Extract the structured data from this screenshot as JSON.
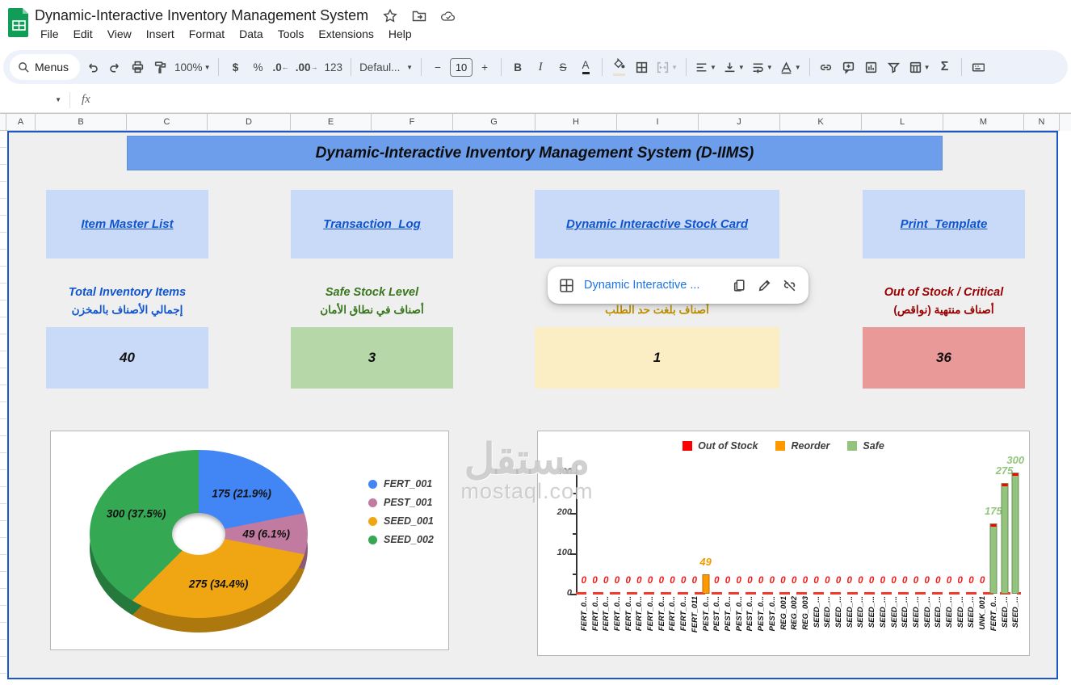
{
  "titlebar": {
    "title": "Dynamic-Interactive Inventory Management System"
  },
  "menubar": {
    "items": [
      "File",
      "Edit",
      "View",
      "Insert",
      "Format",
      "Data",
      "Tools",
      "Extensions",
      "Help"
    ]
  },
  "toolbar": {
    "menus": "Menus",
    "zoom": "100%",
    "currency": "$",
    "percent": "%",
    "decrease_decimal": ".0",
    "increase_decimal": ".00",
    "number_format": "123",
    "font": "Defaul...",
    "font_size": "10",
    "minus": "−",
    "plus": "+",
    "bold": "B",
    "italic": "I",
    "strike": "S",
    "text_color": "A",
    "sum": "Σ"
  },
  "formula_bar": {
    "fx": "fx"
  },
  "grid": {
    "columns": [
      "A",
      "B",
      "C",
      "D",
      "E",
      "F",
      "G",
      "H",
      "I",
      "J",
      "K",
      "L",
      "M",
      "N"
    ]
  },
  "dashboard": {
    "banner": "Dynamic-Interactive Inventory Management System (D-IIMS)",
    "banner_color": "#6d9eeb",
    "nav": [
      {
        "label": "Item Master List"
      },
      {
        "label": "Transaction_Log"
      },
      {
        "label": "Dynamic Interactive Stock Card"
      },
      {
        "label": "Print_Template"
      }
    ],
    "link_popup": {
      "label": "Dynamic Interactive ..."
    },
    "stats": [
      {
        "title": "Total Inventory Items",
        "title_ar": "إجمالي الأصناف بالمخزن",
        "value": "40",
        "title_color": "#1155cc",
        "box_color": "#c9daf8"
      },
      {
        "title": "Safe Stock Level",
        "title_ar": "أصناف في نطاق الأمان",
        "value": "3",
        "title_color": "#38761d",
        "box_color": "#b6d7a8"
      },
      {
        "title": "",
        "title_ar": "أصناف بلغت حد الطلب",
        "value": "1",
        "title_color": "#bf9000",
        "box_color": "#fbeec5"
      },
      {
        "title": "Out of Stock / Critical",
        "title_ar": "أصناف منتهية (نواقص)",
        "value": "36",
        "title_color": "#990000",
        "box_color": "#ea9999"
      }
    ]
  },
  "chart_data": [
    {
      "type": "pie",
      "style": "3d-donut",
      "legend_position": "right",
      "slices": [
        {
          "label": "FERT_001",
          "value": 175,
          "pct": 21.9,
          "display": "175 (21.9%)",
          "color": "#4285f4"
        },
        {
          "label": "PEST_001",
          "value": 49,
          "pct": 6.1,
          "display": "49 (6.1%)",
          "color": "#c27ba0"
        },
        {
          "label": "SEED_001",
          "value": 275,
          "pct": 34.4,
          "display": "275 (34.4%)",
          "color": "#f0a613"
        },
        {
          "label": "SEED_002",
          "value": 300,
          "pct": 37.5,
          "display": "300 (37.5%)",
          "color": "#34a853"
        }
      ]
    },
    {
      "type": "bar",
      "legend_position": "top",
      "ylim": [
        0,
        300
      ],
      "yticks": [
        0,
        100,
        200,
        300
      ],
      "minor_ticks": [
        50,
        150,
        250
      ],
      "zero_display": "0",
      "legend": [
        {
          "key": "out",
          "label": "Out of Stock",
          "color": "#ff0000",
          "label_color": "#f01818"
        },
        {
          "key": "reorder",
          "label": "Reorder",
          "color": "#ff9900",
          "label_color": "#f09b00"
        },
        {
          "key": "safe",
          "label": "Safe",
          "color": "#93c47d",
          "label_color": "#93c47d"
        }
      ],
      "bars": [
        {
          "label": "FERT_0...",
          "value": 0,
          "status": "out"
        },
        {
          "label": "FERT_0...",
          "value": 0,
          "status": "out"
        },
        {
          "label": "FERT_0...",
          "value": 0,
          "status": "out"
        },
        {
          "label": "FERT_0...",
          "value": 0,
          "status": "out"
        },
        {
          "label": "FERT_0...",
          "value": 0,
          "status": "out"
        },
        {
          "label": "FERT_0...",
          "value": 0,
          "status": "out"
        },
        {
          "label": "FERT_0...",
          "value": 0,
          "status": "out"
        },
        {
          "label": "FERT_0...",
          "value": 0,
          "status": "out"
        },
        {
          "label": "FERT_0...",
          "value": 0,
          "status": "out"
        },
        {
          "label": "FERT_0...",
          "value": 0,
          "status": "out"
        },
        {
          "label": "FERT_011",
          "value": 0,
          "status": "out"
        },
        {
          "label": "PEST_0...",
          "value": 49,
          "status": "reorder"
        },
        {
          "label": "PEST_0...",
          "value": 0,
          "status": "out"
        },
        {
          "label": "PEST_0...",
          "value": 0,
          "status": "out"
        },
        {
          "label": "PEST_0...",
          "value": 0,
          "status": "out"
        },
        {
          "label": "PEST_0...",
          "value": 0,
          "status": "out"
        },
        {
          "label": "PEST_0...",
          "value": 0,
          "status": "out"
        },
        {
          "label": "PEST_0...",
          "value": 0,
          "status": "out"
        },
        {
          "label": "REG_001",
          "value": 0,
          "status": "out"
        },
        {
          "label": "REG_002",
          "value": 0,
          "status": "out"
        },
        {
          "label": "REG_003",
          "value": 0,
          "status": "out"
        },
        {
          "label": "SEED_...",
          "value": 0,
          "status": "out"
        },
        {
          "label": "SEED_...",
          "value": 0,
          "status": "out"
        },
        {
          "label": "SEED_...",
          "value": 0,
          "status": "out"
        },
        {
          "label": "SEED_...",
          "value": 0,
          "status": "out"
        },
        {
          "label": "SEED_...",
          "value": 0,
          "status": "out"
        },
        {
          "label": "SEED_...",
          "value": 0,
          "status": "out"
        },
        {
          "label": "SEED_...",
          "value": 0,
          "status": "out"
        },
        {
          "label": "SEED_...",
          "value": 0,
          "status": "out"
        },
        {
          "label": "SEED_...",
          "value": 0,
          "status": "out"
        },
        {
          "label": "SEED_...",
          "value": 0,
          "status": "out"
        },
        {
          "label": "SEED_...",
          "value": 0,
          "status": "out"
        },
        {
          "label": "SEED_...",
          "value": 0,
          "status": "out"
        },
        {
          "label": "SEED_...",
          "value": 0,
          "status": "out"
        },
        {
          "label": "SEED_...",
          "value": 0,
          "status": "out"
        },
        {
          "label": "SEED_...",
          "value": 0,
          "status": "out"
        },
        {
          "label": "UNK_001",
          "value": 0,
          "status": "out"
        },
        {
          "label": "FERT_0...",
          "value": 175,
          "status": "safe"
        },
        {
          "label": "SEED_...",
          "value": 275,
          "status": "safe"
        },
        {
          "label": "SEED_...",
          "value": 300,
          "status": "safe"
        }
      ]
    }
  ],
  "watermark": {
    "ar": "مستقل",
    "en": "mostaql.com"
  }
}
